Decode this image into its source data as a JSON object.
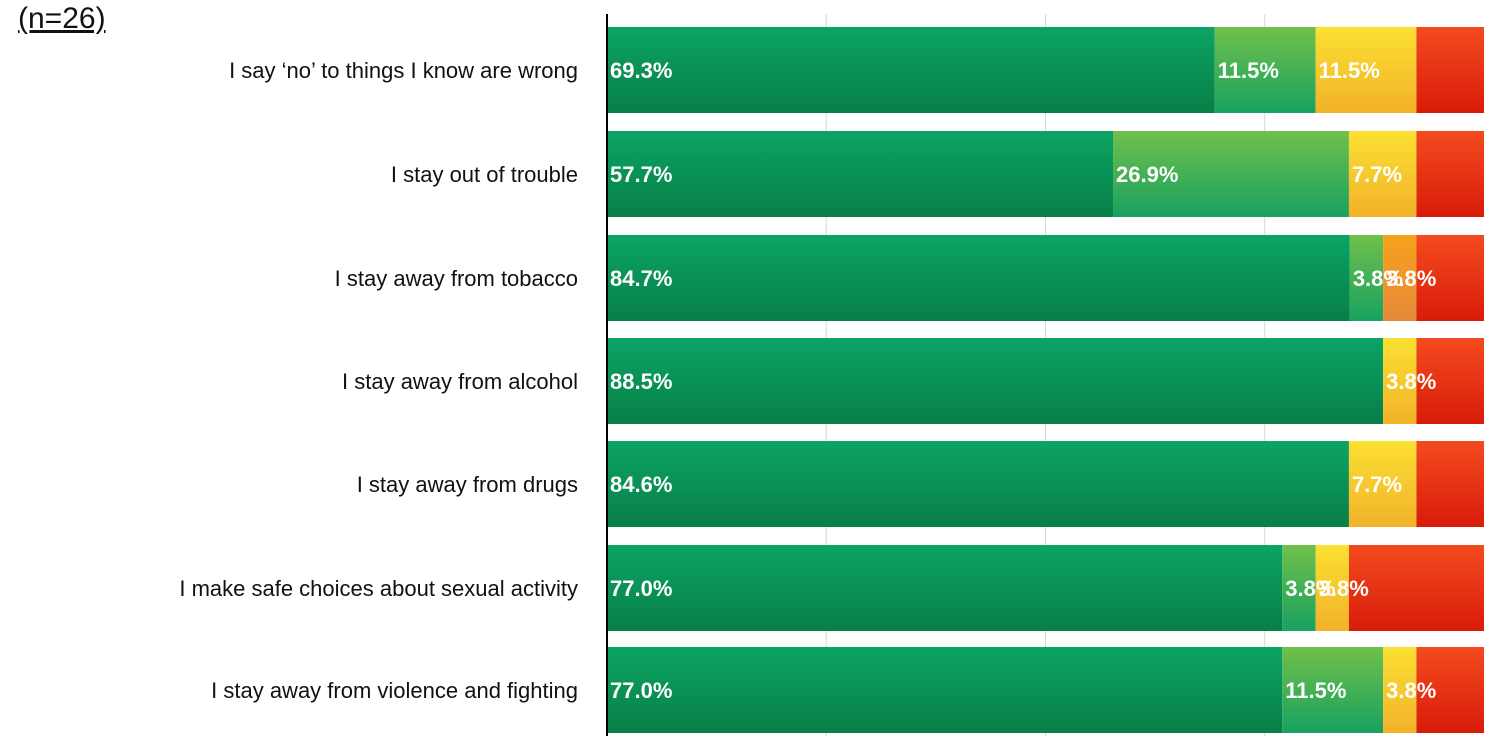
{
  "n_label": "(n=26)",
  "chart_data": {
    "type": "bar",
    "orientation": "horizontal",
    "stacked": true,
    "percent": true,
    "xlim": [
      0,
      100
    ],
    "grid": true,
    "legend": "none",
    "categories": [
      "I say ‘no’ to things I know are wrong",
      "I stay out of trouble",
      "I stay away from tobacco",
      "I stay away from alcohol",
      "I stay away from drugs",
      "I make safe choices about sexual activity",
      "I stay away from violence and fighting"
    ],
    "series": [
      {
        "color": "#0b9a5a",
        "values": [
          69.3,
          57.7,
          84.7,
          88.5,
          84.6,
          77.0,
          77.0
        ],
        "labels": [
          "69.3%",
          "57.7%",
          "84.7%",
          "88.5%",
          "84.6%",
          "77.0%",
          "77.0%"
        ]
      },
      {
        "color": "#48b84b",
        "values": [
          11.5,
          26.9,
          3.8,
          0,
          0,
          3.8,
          11.5
        ],
        "labels": [
          "11.5%",
          "26.9%",
          "3.8%",
          "",
          "",
          "3.8%",
          "11.5%"
        ]
      },
      {
        "color": "#f7c62c",
        "values": [
          11.5,
          7.7,
          0,
          3.8,
          7.7,
          3.8,
          3.8
        ],
        "labels": [
          "11.5%",
          "7.7%",
          "",
          "3.8%",
          "7.7%",
          "3.8%",
          "3.8%"
        ]
      },
      {
        "color": "#f09a22",
        "values": [
          0,
          0,
          3.8,
          0,
          0,
          0,
          0
        ],
        "labels": [
          "",
          "",
          "3.8%",
          "",
          "",
          "",
          ""
        ]
      },
      {
        "color": "#e8320f",
        "values": [
          7.7,
          7.7,
          7.7,
          7.7,
          7.7,
          15.4,
          7.7
        ],
        "labels": [
          "",
          "",
          "",
          "",
          "",
          "",
          ""
        ]
      }
    ],
    "colors": {
      "dark_green_top": "#0ba464",
      "dark_green_bottom": "#087f47",
      "green_top": "#70c04a",
      "green_bottom": "#18a160",
      "yellow_top": "#fbe032",
      "yellow_bottom": "#f2b22a",
      "orange_top": "#f7a21c",
      "orange_bottom": "#e5893a",
      "red_top": "#f44a1e",
      "red_bottom": "#d81c0a",
      "gridline": "#d8d8d8",
      "axis": "#000000"
    }
  }
}
